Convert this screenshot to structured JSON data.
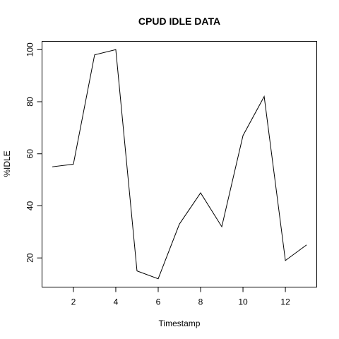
{
  "chart_data": {
    "type": "line",
    "title": "CPUD IDLE DATA",
    "xlabel": "Timestamp",
    "ylabel": "%IDLE",
    "x": [
      1,
      2,
      3,
      4,
      5,
      6,
      7,
      8,
      9,
      10,
      11,
      12,
      13
    ],
    "series": [
      {
        "values": [
          55,
          56,
          98,
          100,
          15,
          12,
          33,
          45,
          32,
          67,
          82,
          19,
          25
        ]
      }
    ],
    "xlim": [
      0.52,
      13.48
    ],
    "ylim": [
      8.8,
      103.2
    ],
    "xticks": [
      2,
      4,
      6,
      8,
      10,
      12
    ],
    "yticks": [
      20,
      40,
      60,
      80,
      100
    ],
    "line_color": "#000000",
    "grid": false,
    "legend": "none"
  }
}
